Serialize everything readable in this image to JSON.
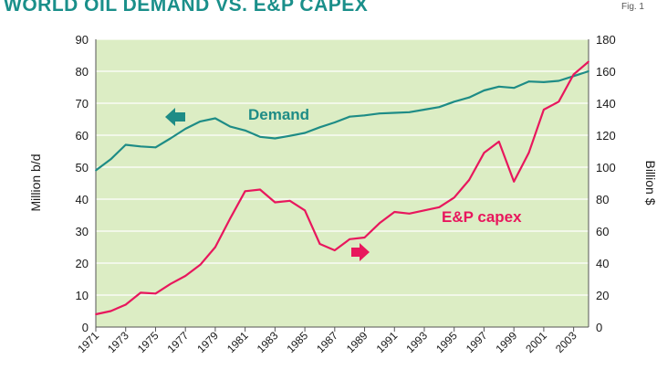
{
  "header": {
    "title": "WORLD OIL DEMAND VS. E&P CAPEX",
    "fig_label": "Fig. 1"
  },
  "colors": {
    "demand": "#1e8c86",
    "capex": "#e8175d",
    "plot_bg": "#dcedc4",
    "grid": "#ffffff"
  },
  "chart_data": {
    "type": "line",
    "title": "WORLD OIL DEMAND VS. E&P CAPEX",
    "x": [
      1971,
      1972,
      1973,
      1974,
      1975,
      1976,
      1977,
      1978,
      1979,
      1980,
      1981,
      1982,
      1983,
      1984,
      1985,
      1986,
      1987,
      1988,
      1989,
      1990,
      1991,
      1992,
      1993,
      1994,
      1995,
      1996,
      1997,
      1998,
      1999,
      2000,
      2001,
      2002,
      2003,
      2004
    ],
    "xticks": [
      1971,
      1973,
      1975,
      1977,
      1979,
      1981,
      1983,
      1985,
      1987,
      1989,
      1991,
      1993,
      1995,
      1997,
      1999,
      2001,
      2003
    ],
    "xlim": [
      1971,
      2004
    ],
    "ylabel": "Million b/d",
    "ylim": [
      0,
      90
    ],
    "yticks": [
      0,
      10,
      20,
      30,
      40,
      50,
      60,
      70,
      80,
      90
    ],
    "y2label": "Billion $",
    "y2lim": [
      0,
      180
    ],
    "y2ticks": [
      0,
      20,
      40,
      60,
      80,
      100,
      120,
      140,
      160,
      180
    ],
    "grid": true,
    "series": [
      {
        "name": "Demand",
        "axis": "left",
        "label": "Demand",
        "values": [
          49,
          52.5,
          57,
          56.5,
          56.2,
          59,
          62,
          64.3,
          65.3,
          62.7,
          61.5,
          59.5,
          59,
          59.8,
          60.7,
          62.5,
          64,
          65.8,
          66.2,
          66.8,
          67,
          67.2,
          68,
          68.8,
          70.5,
          71.8,
          74,
          75.2,
          74.8,
          76.8,
          76.6,
          77,
          78.5,
          80
        ]
      },
      {
        "name": "E&P capex",
        "axis": "right",
        "label": "E&P capex",
        "values": [
          8,
          10,
          14,
          21.5,
          21,
          27,
          32,
          39,
          50,
          68,
          85,
          86,
          78,
          79,
          73,
          52,
          48,
          55,
          56,
          65,
          72,
          71,
          73,
          75,
          81,
          92,
          109,
          116,
          91,
          109,
          136,
          141,
          158,
          166
        ]
      }
    ]
  }
}
